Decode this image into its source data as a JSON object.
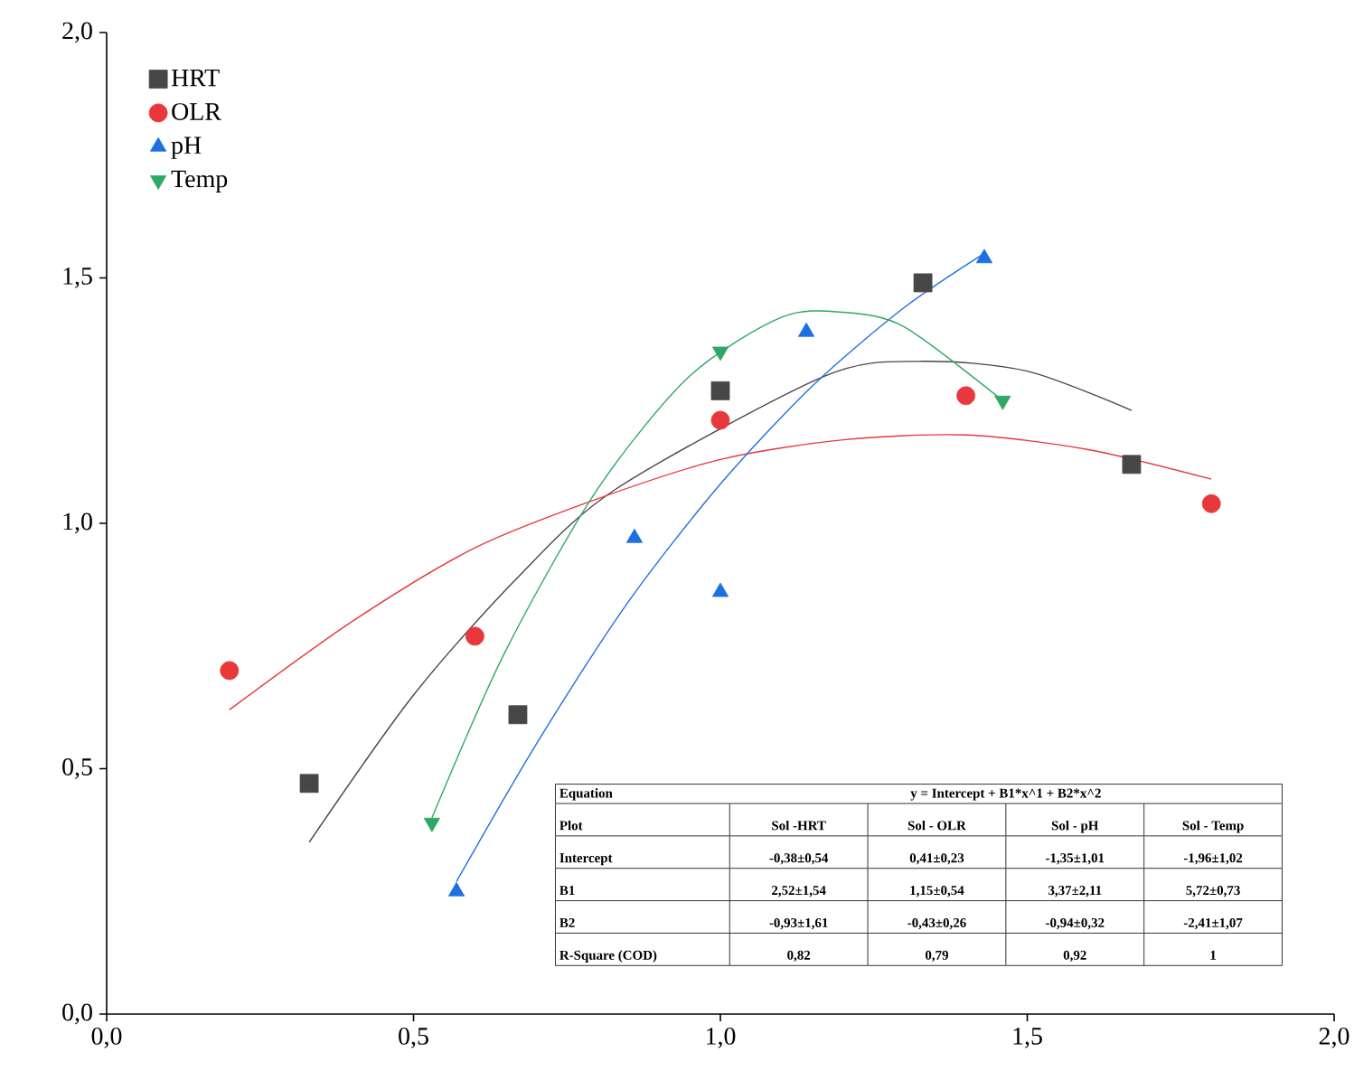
{
  "chart_data": {
    "type": "scatter",
    "xlim": [
      0,
      2
    ],
    "ylim": [
      0,
      2
    ],
    "xticks": [
      {
        "value": 0,
        "label": "0,0"
      },
      {
        "value": 0.5,
        "label": "0,5"
      },
      {
        "value": 1,
        "label": "1,0"
      },
      {
        "value": 1.5,
        "label": "1,5"
      },
      {
        "value": 2,
        "label": "2,0"
      }
    ],
    "yticks": [
      {
        "value": 0,
        "label": "0,0"
      },
      {
        "value": 0.5,
        "label": "0,5"
      },
      {
        "value": 1,
        "label": "1,0"
      },
      {
        "value": 1.5,
        "label": "1,5"
      },
      {
        "value": 2,
        "label": "2,0"
      }
    ],
    "legend": "top left",
    "series": [
      {
        "name": "HRT",
        "type": "scatter",
        "marker": "square",
        "color": "#474747",
        "x": [
          0.33,
          0.67,
          1.0,
          1.33,
          1.67
        ],
        "values": [
          0.47,
          0.61,
          1.27,
          1.49,
          1.12
        ]
      },
      {
        "name": "OLR",
        "type": "scatter",
        "marker": "circle",
        "color": "#e8383b",
        "x": [
          0.2,
          0.6,
          1.0,
          1.4,
          1.8
        ],
        "values": [
          0.7,
          0.77,
          1.21,
          1.26,
          1.04
        ]
      },
      {
        "name": "pH",
        "type": "scatter",
        "marker": "triangle",
        "color": "#1e6fe0",
        "x": [
          0.57,
          0.86,
          1.0,
          1.14,
          1.43
        ],
        "values": [
          0.25,
          0.97,
          0.86,
          1.39,
          1.54
        ]
      },
      {
        "name": "Temp",
        "type": "scatter",
        "marker": "triangle down",
        "color": "#2fa865",
        "x": [
          0.53,
          1.0,
          1.46
        ],
        "values": [
          0.39,
          1.35,
          1.25
        ]
      },
      {
        "type": "line",
        "color": "#474747",
        "x": [
          0.33,
          0.5,
          0.67,
          0.83,
          1.17,
          1.33,
          1.5,
          1.67
        ],
        "values": [
          0.35,
          0.65,
          0.89,
          1.07,
          1.3,
          1.33,
          1.31,
          1.23
        ]
      },
      {
        "type": "line",
        "color": "#e8383b",
        "x": [
          0.2,
          0.4,
          0.6,
          0.8,
          1.0,
          1.2,
          1.4,
          1.6,
          1.8
        ],
        "values": [
          0.62,
          0.8,
          0.95,
          1.05,
          1.13,
          1.17,
          1.18,
          1.15,
          1.09
        ]
      },
      {
        "type": "line",
        "color": "#1e6fe0",
        "x": [
          0.57,
          0.7,
          0.85,
          1.0,
          1.15,
          1.3,
          1.43
        ],
        "values": [
          0.27,
          0.55,
          0.84,
          1.08,
          1.28,
          1.44,
          1.55
        ]
      },
      {
        "type": "line",
        "color": "#2fa865",
        "x": [
          0.53,
          0.65,
          0.8,
          0.95,
          1.1,
          1.2,
          1.3,
          1.46
        ],
        "values": [
          0.4,
          0.74,
          1.07,
          1.3,
          1.42,
          1.43,
          1.4,
          1.25
        ]
      }
    ],
    "annotations": [
      "Equation",
      "y = Intercept + B1*x^1 + B2*x^2",
      "Plot",
      "Sol -HRT",
      "Sol - OLR",
      "Sol - pH",
      "Sol - Temp",
      "Intercept",
      "-0,38±0,54",
      "0,41±0,23",
      "-1,35±1,01",
      "-1,96±1,02",
      "B1",
      "2,52±1,54",
      "1,15±0,54",
      "3,37±2,11",
      "5,72±0,73",
      "B2",
      "-0,93±1,61",
      "-0,43±0,26",
      "-0,94±0,32",
      "-2,41±1,07",
      "R-Square (COD)",
      "0,82",
      "0,79",
      "0,92",
      "1"
    ]
  }
}
